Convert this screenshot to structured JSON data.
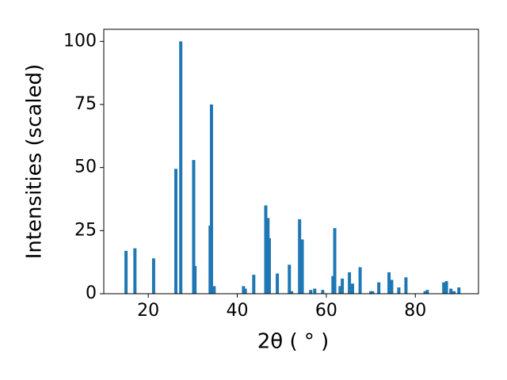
{
  "chart_data": {
    "type": "bar",
    "xlabel": "2θ ( ° )",
    "ylabel": "Intensities (scaled)",
    "x": [
      15.0,
      17.0,
      21.2,
      26.2,
      27.3,
      30.2,
      30.5,
      33.9,
      34.2,
      34.8,
      41.4,
      41.8,
      43.7,
      46.4,
      46.9,
      47.2,
      49.0,
      51.7,
      52.2,
      54.0,
      54.6,
      56.5,
      57.4,
      59.2,
      61.5,
      61.9,
      63.1,
      63.6,
      65.2,
      65.9,
      67.6,
      70.0,
      70.4,
      71.8,
      74.1,
      74.7,
      76.3,
      77.9,
      82.2,
      82.7,
      86.4,
      87.0,
      88.0,
      88.7,
      89.8
    ],
    "values": [
      17,
      18,
      14,
      49.5,
      100,
      53,
      11,
      27,
      75,
      3,
      3,
      2,
      7.5,
      35,
      30,
      22,
      8,
      11.5,
      1,
      29.5,
      21.5,
      1.5,
      2,
      1.5,
      7,
      26,
      3,
      6,
      8.5,
      4,
      10.5,
      1,
      1,
      4.5,
      8.5,
      5.5,
      2.5,
      6.5,
      1,
      1.5,
      4.5,
      5,
      2,
      1,
      2.5
    ],
    "color": "#1f77b4",
    "xlim": [
      10,
      94.2
    ],
    "ylim": [
      0,
      104.8
    ],
    "xticks": [
      20,
      40,
      60,
      80
    ],
    "yticks": [
      0,
      25,
      50,
      75,
      100
    ],
    "grid": false
  }
}
